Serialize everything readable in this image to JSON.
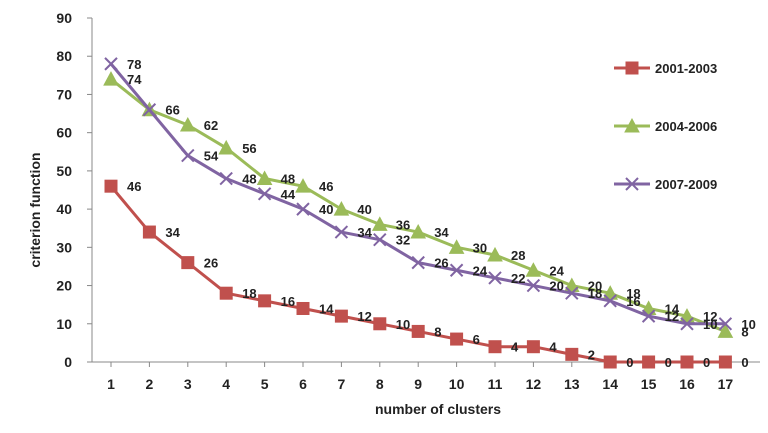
{
  "chart_data": {
    "type": "line",
    "title": "",
    "xlabel": "number of clusters",
    "ylabel": "criterion function",
    "x": [
      1,
      2,
      3,
      4,
      5,
      6,
      7,
      8,
      9,
      10,
      11,
      12,
      13,
      14,
      15,
      16,
      17
    ],
    "ylim": [
      0,
      90
    ],
    "yticks": [
      0,
      10,
      20,
      30,
      40,
      50,
      60,
      70,
      80,
      90
    ],
    "grid": false,
    "legend_position": "right",
    "series": [
      {
        "name": "2001-2003",
        "color": "#c0504d",
        "marker": "square",
        "values": [
          46,
          34,
          26,
          18,
          16,
          14,
          12,
          10,
          8,
          6,
          4,
          4,
          2,
          0,
          0,
          0,
          0
        ],
        "labels": [
          "46",
          "34",
          "26",
          "18",
          "16",
          "14",
          "12",
          "10",
          "8",
          "6",
          "4",
          "4",
          "2",
          "0",
          "0",
          "0",
          "0"
        ]
      },
      {
        "name": "2004-2006",
        "color": "#9bbb59",
        "marker": "triangle",
        "values": [
          74,
          66,
          62,
          56,
          48,
          46,
          40,
          36,
          34,
          30,
          28,
          24,
          20,
          18,
          14,
          12,
          8
        ],
        "labels": [
          "74",
          "66",
          "62",
          "56",
          "48",
          "46",
          "40",
          "36",
          "34",
          "30",
          "28",
          "24",
          "20",
          "18",
          "14",
          "12",
          "8"
        ]
      },
      {
        "name": "2007-2009",
        "color": "#8064a2",
        "marker": "x",
        "values": [
          78,
          66,
          54,
          48,
          44,
          40,
          34,
          32,
          26,
          24,
          22,
          20,
          18,
          16,
          12,
          10,
          10
        ],
        "labels": [
          "78",
          "",
          "54",
          "48",
          "44",
          "40",
          "34",
          "32",
          "26",
          "24",
          "22",
          "20",
          "18",
          "16",
          "12",
          "10",
          "10"
        ]
      }
    ]
  }
}
